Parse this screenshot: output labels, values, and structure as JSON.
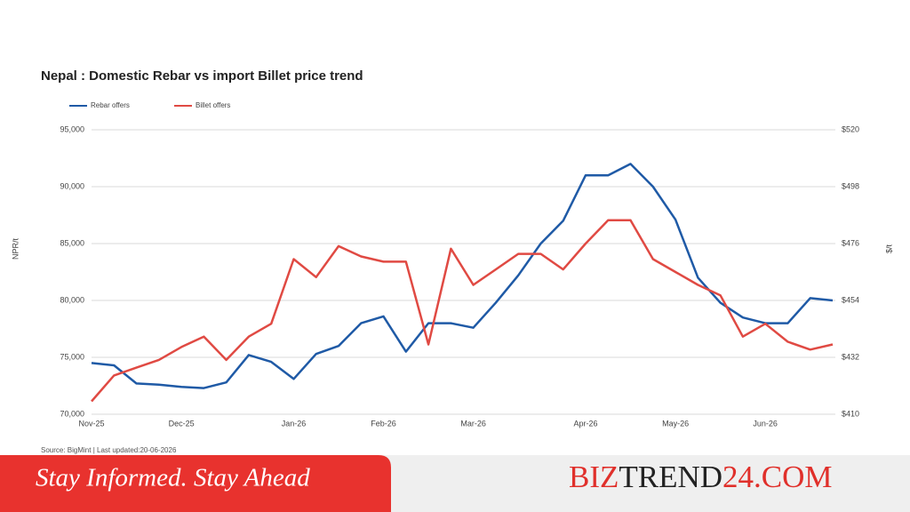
{
  "chart_data": {
    "type": "line",
    "title": "Nepal : Domestic Rebar vs import Billet price trend",
    "y_label": "NPR/t",
    "y2_label": "$/t",
    "source": "Source: BigMint | Last updated:20-06-2026",
    "grid": true,
    "legend": "top-left",
    "categories": [
      "Nov-25",
      null,
      null,
      null,
      "Dec-25",
      null,
      null,
      null,
      null,
      "Jan-26",
      null,
      null,
      null,
      "Feb-26",
      null,
      null,
      null,
      "Mar-26",
      null,
      null,
      null,
      null,
      "Apr-26",
      null,
      null,
      null,
      "May-26",
      null,
      null,
      null,
      "Jun-26",
      null,
      null,
      null
    ],
    "ylim": [
      70000,
      95000
    ],
    "yticks": [
      {
        "value": 70000,
        "label": "70,000"
      },
      {
        "value": 75000,
        "label": "75,000"
      },
      {
        "value": 80000,
        "label": "80,000"
      },
      {
        "value": 85000,
        "label": "85,000"
      },
      {
        "value": 90000,
        "label": "90,000"
      },
      {
        "value": 95000,
        "label": "95,000"
      }
    ],
    "y2lim": [
      410,
      520
    ],
    "y2ticks": [
      {
        "value": 410,
        "label": "$410"
      },
      {
        "value": 432,
        "label": "$432"
      },
      {
        "value": 454,
        "label": "$454"
      },
      {
        "value": 476,
        "label": "$476"
      },
      {
        "value": 498,
        "label": "$498"
      },
      {
        "value": 520,
        "label": "$520"
      }
    ],
    "series": [
      {
        "name": "Rebar offers",
        "color": "#1f5aa6",
        "values": [
          74500,
          74300,
          72700,
          72600,
          72400,
          72300,
          72800,
          75200,
          74600,
          73100,
          75300,
          76000,
          78000,
          78600,
          75500,
          78000,
          78000,
          77600,
          79800,
          82200,
          85000,
          87000,
          91000,
          91000,
          92000,
          90000,
          87100,
          82000,
          79800,
          78500,
          78000,
          78000,
          80200,
          80000
        ]
      },
      {
        "name": "Billet offers",
        "color": "#e04a43",
        "axis": "y2",
        "values": [
          415,
          425,
          428,
          431,
          436,
          440,
          431,
          440,
          445,
          470,
          463,
          475,
          471,
          469,
          469,
          437,
          474,
          460,
          466,
          472,
          472,
          466,
          476,
          485,
          485,
          470,
          465,
          460,
          456,
          440,
          445,
          438,
          435,
          437
        ]
      }
    ]
  },
  "banner": {
    "tagline": "Stay Informed. Stay Ahead",
    "brand": [
      "BIZ",
      "TREND",
      "24.COM"
    ]
  }
}
